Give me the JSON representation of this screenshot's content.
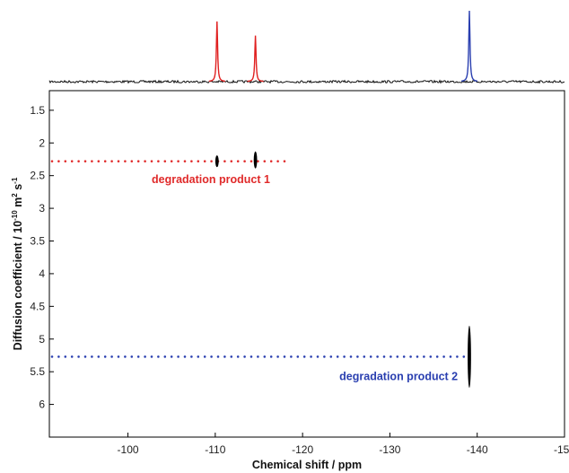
{
  "chart_data": {
    "type": "scatter",
    "title": "",
    "xlabel": "Chemical shift / ppm",
    "ylabel": "Diffusion coefficient / 10",
    "ylabel_exponent_1": "-10",
    "ylabel_unit_m": " m",
    "ylabel_exponent_2": "2",
    "ylabel_unit_s": " s",
    "ylabel_exponent_3": "-1",
    "xlim": [
      -91,
      -150
    ],
    "ylim": [
      1.2,
      6.5
    ],
    "x_axis_reversed": true,
    "y_axis_inverted": true,
    "grid": false,
    "x_ticks": [
      -100,
      -110,
      -120,
      -130,
      -140,
      -150
    ],
    "x_tick_labels": [
      "-100",
      "-110",
      "-120",
      "-130",
      "-140",
      "-150"
    ],
    "y_ticks": [
      1.5,
      2,
      2.5,
      3,
      3.5,
      4,
      4.5,
      5,
      5.5,
      6
    ],
    "y_tick_labels": [
      "1.5",
      "2",
      "2.5",
      "3",
      "3.5",
      "4",
      "4.5",
      "5",
      "5.5",
      "6"
    ],
    "top_spectrum": {
      "peaks": [
        {
          "shift": -110.2,
          "intensity": 0.85,
          "color": "#e02020"
        },
        {
          "shift": -114.6,
          "intensity": 0.65,
          "color": "#e02020"
        },
        {
          "shift": -139.1,
          "intensity": 1.0,
          "color": "#2a3fb0"
        }
      ],
      "baseline_color": "#111111"
    },
    "series": [
      {
        "name": "degradation product 1",
        "color": "#e02a2a",
        "diffusion": 2.28,
        "line_x_range": [
          -91,
          -118.5
        ],
        "points": [
          {
            "x": -110.2,
            "y": 2.28,
            "height": 0.18
          },
          {
            "x": -114.6,
            "y": 2.26,
            "height": 0.26
          }
        ],
        "label_x": -109.5,
        "label_y": 2.56
      },
      {
        "name": "degradation product 2",
        "color": "#2a3fb0",
        "diffusion": 5.27,
        "line_x_range": [
          -91,
          -139.1
        ],
        "points": [
          {
            "x": -139.1,
            "y": 5.27,
            "height": 0.95
          }
        ],
        "label_x": -131.0,
        "label_y": 5.57
      }
    ]
  }
}
